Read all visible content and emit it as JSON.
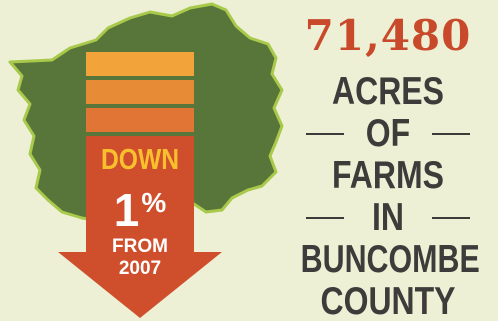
{
  "graphic": {
    "colors": {
      "background": "#eef0d6",
      "map_fill": "#58753a",
      "map_outline": "#a8c94a",
      "arrow": "#cf4f2c",
      "accent_yellow": "#f9c02e",
      "headline_red": "#c84a2a",
      "headline_dark": "#3e3c3a"
    },
    "icon": "down-arrow-icon",
    "map": "buncombe-county-map",
    "arrow_text": {
      "down": "DOWN",
      "percent_value": "1",
      "percent_symbol": "%",
      "from": "FROM",
      "year": "2007"
    },
    "headline": {
      "number": "71,480",
      "line1": "ACRES",
      "line2": "OF",
      "line3": "FARMS",
      "line4": "IN",
      "line5": "BUNCOMBE",
      "line6": "COUNTY"
    }
  }
}
